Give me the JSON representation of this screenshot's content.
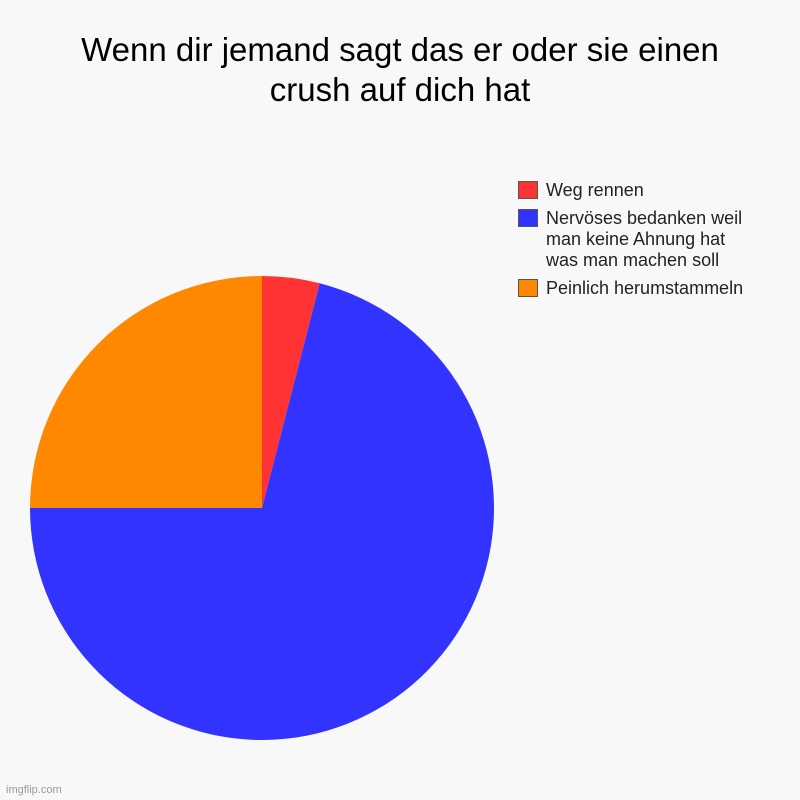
{
  "chart_data": {
    "type": "pie",
    "title": "Wenn dir jemand sagt das er oder sie einen\ncrush auf dich hat",
    "legend_position": "right",
    "slices": [
      {
        "label": "Weg rennen",
        "legend_label": "Weg rennen",
        "value": 4,
        "color": "#ff3333"
      },
      {
        "label": "Nervöses bedanken weil man keine Ahnung hat was man machen soll",
        "legend_label": "Nervöses bedanken weil\nman keine Ahnung hat\nwas man machen soll",
        "value": 71,
        "color": "#3333ff"
      },
      {
        "label": "Peinlich herumstammeln",
        "legend_label": "Peinlich herumstammeln",
        "value": 25,
        "color": "#ff8800"
      }
    ]
  },
  "watermark": "imgflip.com"
}
